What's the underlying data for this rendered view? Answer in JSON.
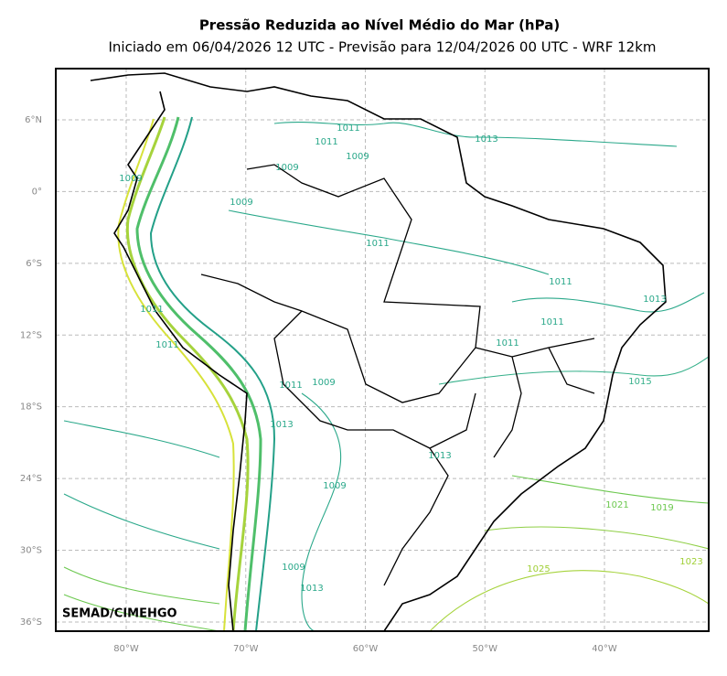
{
  "title": "Pressão Reduzida ao Nível Médio do Mar (hPa)",
  "subtitle": "Iniciado em 06/04/2026 12 UTC - Previsão para 12/04/2026 00 UTC - WRF 12km",
  "credit": "SEMAD/CIMEHGO",
  "lon_ticks": [
    {
      "value": -80,
      "label": "80°W"
    },
    {
      "value": -70,
      "label": "70°W"
    },
    {
      "value": -60,
      "label": "60°W"
    },
    {
      "value": -50,
      "label": "50°W"
    },
    {
      "value": -40,
      "label": "40°W"
    }
  ],
  "lat_ticks": [
    {
      "value": 6,
      "label": "6°N"
    },
    {
      "value": 0,
      "label": "0°"
    },
    {
      "value": -6,
      "label": "6°S"
    },
    {
      "value": -12,
      "label": "12°S"
    },
    {
      "value": -18,
      "label": "18°S"
    },
    {
      "value": -24,
      "label": "24°S"
    },
    {
      "value": -30,
      "label": "30°S"
    },
    {
      "value": -36,
      "label": "36°S"
    }
  ],
  "contour_labels": [
    1013,
    1011,
    1011,
    1009,
    1009,
    1009,
    1009,
    1011,
    1011,
    1013,
    1011,
    1011,
    1015,
    1011,
    1009,
    1011,
    1011,
    1013,
    1013,
    1009,
    1021,
    1019,
    1023,
    1025,
    1013,
    1009
  ]
}
